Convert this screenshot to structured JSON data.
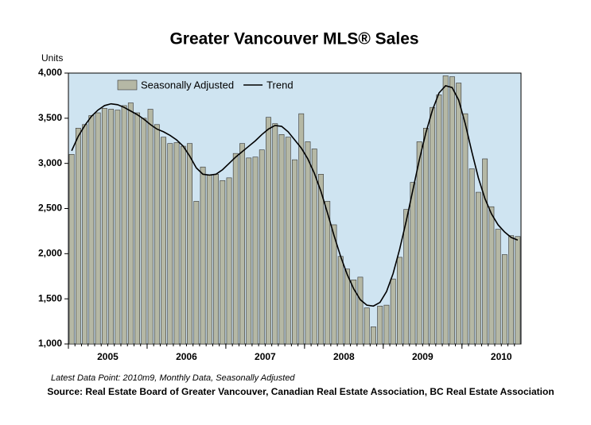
{
  "chart_data": {
    "type": "bar",
    "title": "Greater Vancouver MLS® Sales",
    "ylabel": "Units",
    "note": "Latest Data Point: 2010m9, Monthly Data, Seasonally Adjusted",
    "source": "Source: Real Estate Board of Greater Vancouver, Canadian Real Estate Association, BC Real Estate Association",
    "categories": [
      null,
      null,
      null,
      null,
      null,
      null,
      "2005",
      null,
      null,
      null,
      null,
      null,
      null,
      null,
      null,
      null,
      null,
      null,
      "2006",
      null,
      null,
      null,
      null,
      null,
      null,
      null,
      null,
      null,
      null,
      null,
      "2007",
      null,
      null,
      null,
      null,
      null,
      null,
      null,
      null,
      null,
      null,
      null,
      "2008",
      null,
      null,
      null,
      null,
      null,
      null,
      null,
      null,
      null,
      null,
      null,
      "2009",
      null,
      null,
      null,
      null,
      null,
      null,
      null,
      null,
      null,
      null,
      null,
      "2010",
      null,
      null
    ],
    "series": [
      {
        "name": "Seasonally Adjusted",
        "type": "bar",
        "color": "#b5b8a5",
        "values": [
          3100,
          3390,
          3430,
          3530,
          3560,
          3610,
          3600,
          3590,
          3640,
          3670,
          3560,
          3500,
          3600,
          3430,
          3290,
          3220,
          3230,
          3190,
          3220,
          2580,
          2960,
          2870,
          2880,
          2810,
          2840,
          3110,
          3220,
          3060,
          3070,
          3150,
          3510,
          3440,
          3320,
          3290,
          3040,
          3550,
          3240,
          3160,
          2880,
          2580,
          2320,
          1970,
          1830,
          1710,
          1740,
          1400,
          1190,
          1420,
          1430,
          1720,
          1960,
          2490,
          2790,
          3240,
          3390,
          3620,
          3760,
          3970,
          3960,
          3890,
          3550,
          2940,
          2680,
          3050,
          2520,
          2270,
          1990,
          2200,
          2190
        ]
      },
      {
        "name": "Trend",
        "type": "line",
        "color": "#000000",
        "values": [
          3140,
          3300,
          3420,
          3520,
          3590,
          3640,
          3660,
          3650,
          3620,
          3580,
          3540,
          3490,
          3430,
          3380,
          3350,
          3310,
          3260,
          3190,
          3080,
          2950,
          2880,
          2870,
          2880,
          2930,
          3000,
          3070,
          3130,
          3190,
          3250,
          3320,
          3380,
          3420,
          3410,
          3350,
          3260,
          3170,
          3050,
          2890,
          2690,
          2450,
          2200,
          1970,
          1770,
          1610,
          1490,
          1430,
          1420,
          1460,
          1580,
          1780,
          2050,
          2360,
          2700,
          3040,
          3340,
          3590,
          3780,
          3860,
          3840,
          3700,
          3440,
          3130,
          2840,
          2610,
          2440,
          2320,
          2240,
          2180,
          2150
        ]
      }
    ],
    "ylim": [
      1000,
      4000
    ],
    "yticks": [
      {
        "value": 1000,
        "label": "1,000"
      },
      {
        "value": 1500,
        "label": "1,500"
      },
      {
        "value": 2000,
        "label": "2,000"
      },
      {
        "value": 2500,
        "label": "2,500"
      },
      {
        "value": 3000,
        "label": "3,000"
      },
      {
        "value": 3500,
        "label": "3,500"
      },
      {
        "value": 4000,
        "label": "4,000"
      }
    ],
    "legend": "upper left",
    "background": "#cfe4f1"
  }
}
